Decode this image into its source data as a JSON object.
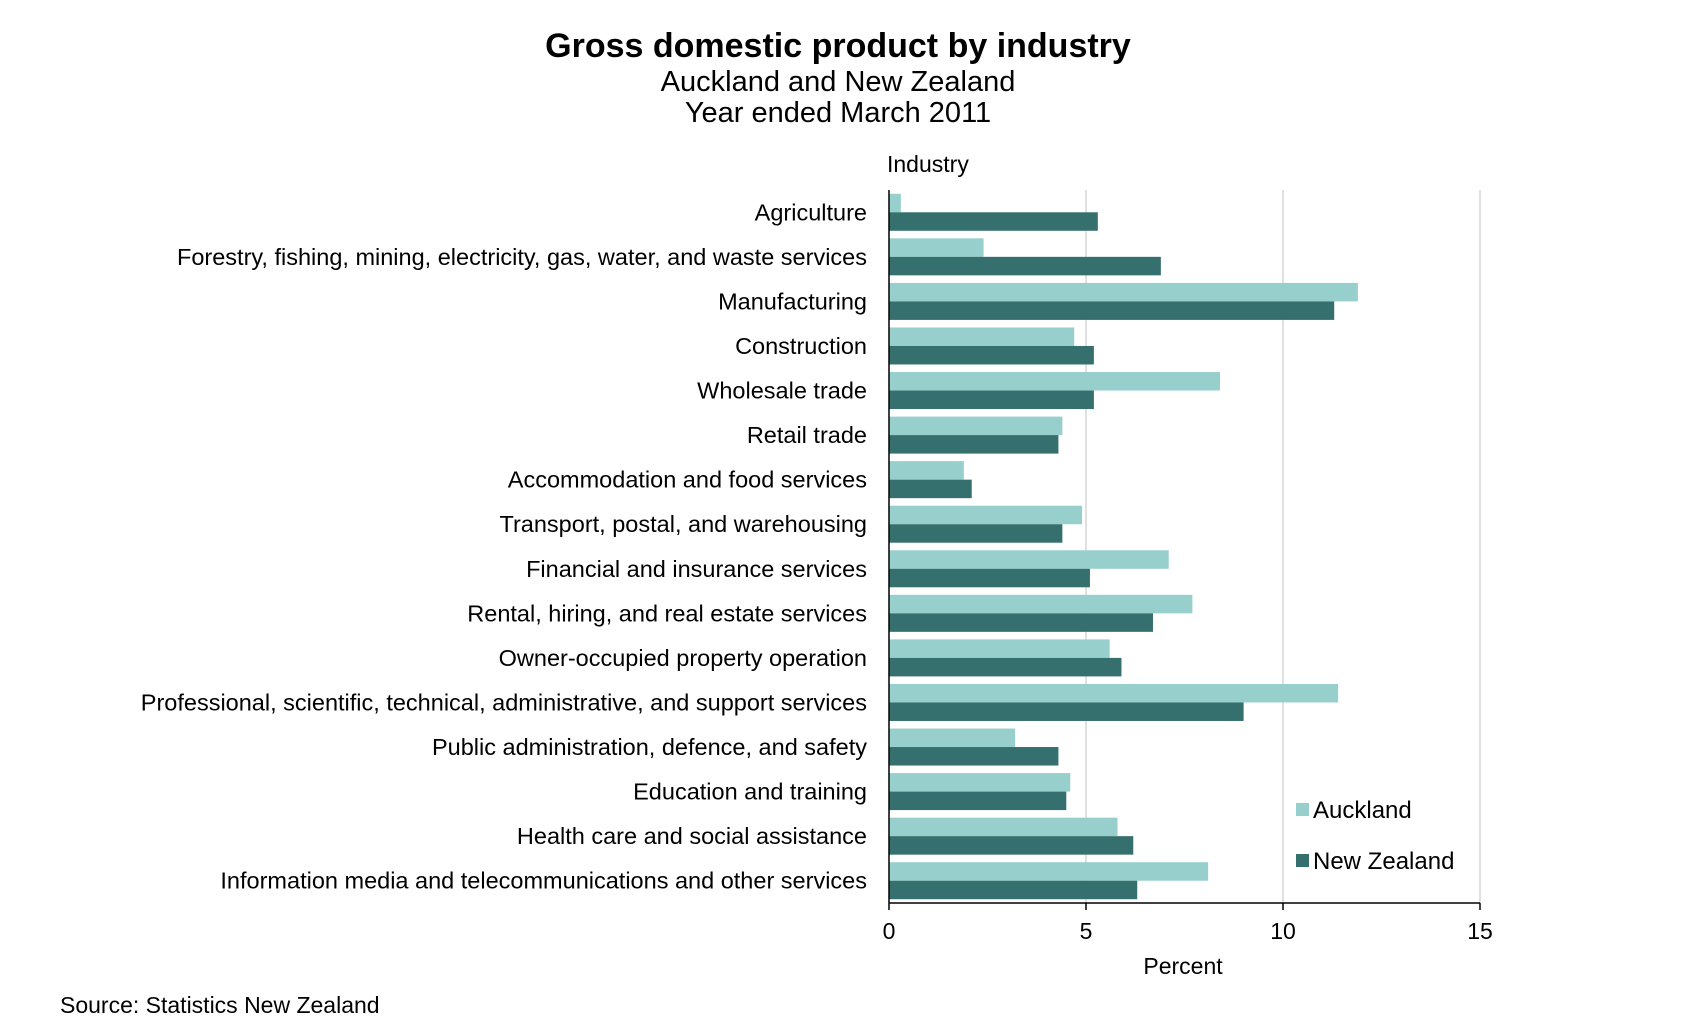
{
  "chart_data": {
    "type": "bar",
    "orientation": "horizontal",
    "title": "Gross domestic product by industry",
    "subtitle_lines": [
      "Auckland and New Zealand",
      "Year ended March 2011"
    ],
    "category_axis_label": "Industry",
    "xlabel": "Percent",
    "xlim": [
      0,
      15
    ],
    "xticks": [
      0,
      5,
      10,
      15
    ],
    "grid": true,
    "legend_position": "bottom-right",
    "source": "Source: Statistics New Zealand",
    "colors": {
      "Auckland": "#96cfcb",
      "New Zealand": "#35706e"
    },
    "categories": [
      "Agriculture",
      "Forestry, fishing, mining, electricity, gas, water, and waste services",
      "Manufacturing",
      "Construction",
      "Wholesale trade",
      "Retail trade",
      "Accommodation and food services",
      "Transport, postal, and warehousing",
      "Financial and insurance services",
      "Rental, hiring, and real estate services",
      "Owner-occupied property operation",
      "Professional, scientific, technical, administrative, and support services",
      "Public administration, defence, and safety",
      "Education and training",
      "Health care and social assistance",
      "Information media and telecommunications and other services"
    ],
    "series": [
      {
        "name": "Auckland",
        "values": [
          0.3,
          2.4,
          11.9,
          4.7,
          8.4,
          4.4,
          1.9,
          4.9,
          7.1,
          7.7,
          5.6,
          11.4,
          3.2,
          4.6,
          5.8,
          8.1
        ]
      },
      {
        "name": "New Zealand",
        "values": [
          5.3,
          6.9,
          11.3,
          5.2,
          5.2,
          4.3,
          2.1,
          4.4,
          5.1,
          6.7,
          5.9,
          9.0,
          4.3,
          4.5,
          6.2,
          6.3
        ]
      }
    ]
  }
}
